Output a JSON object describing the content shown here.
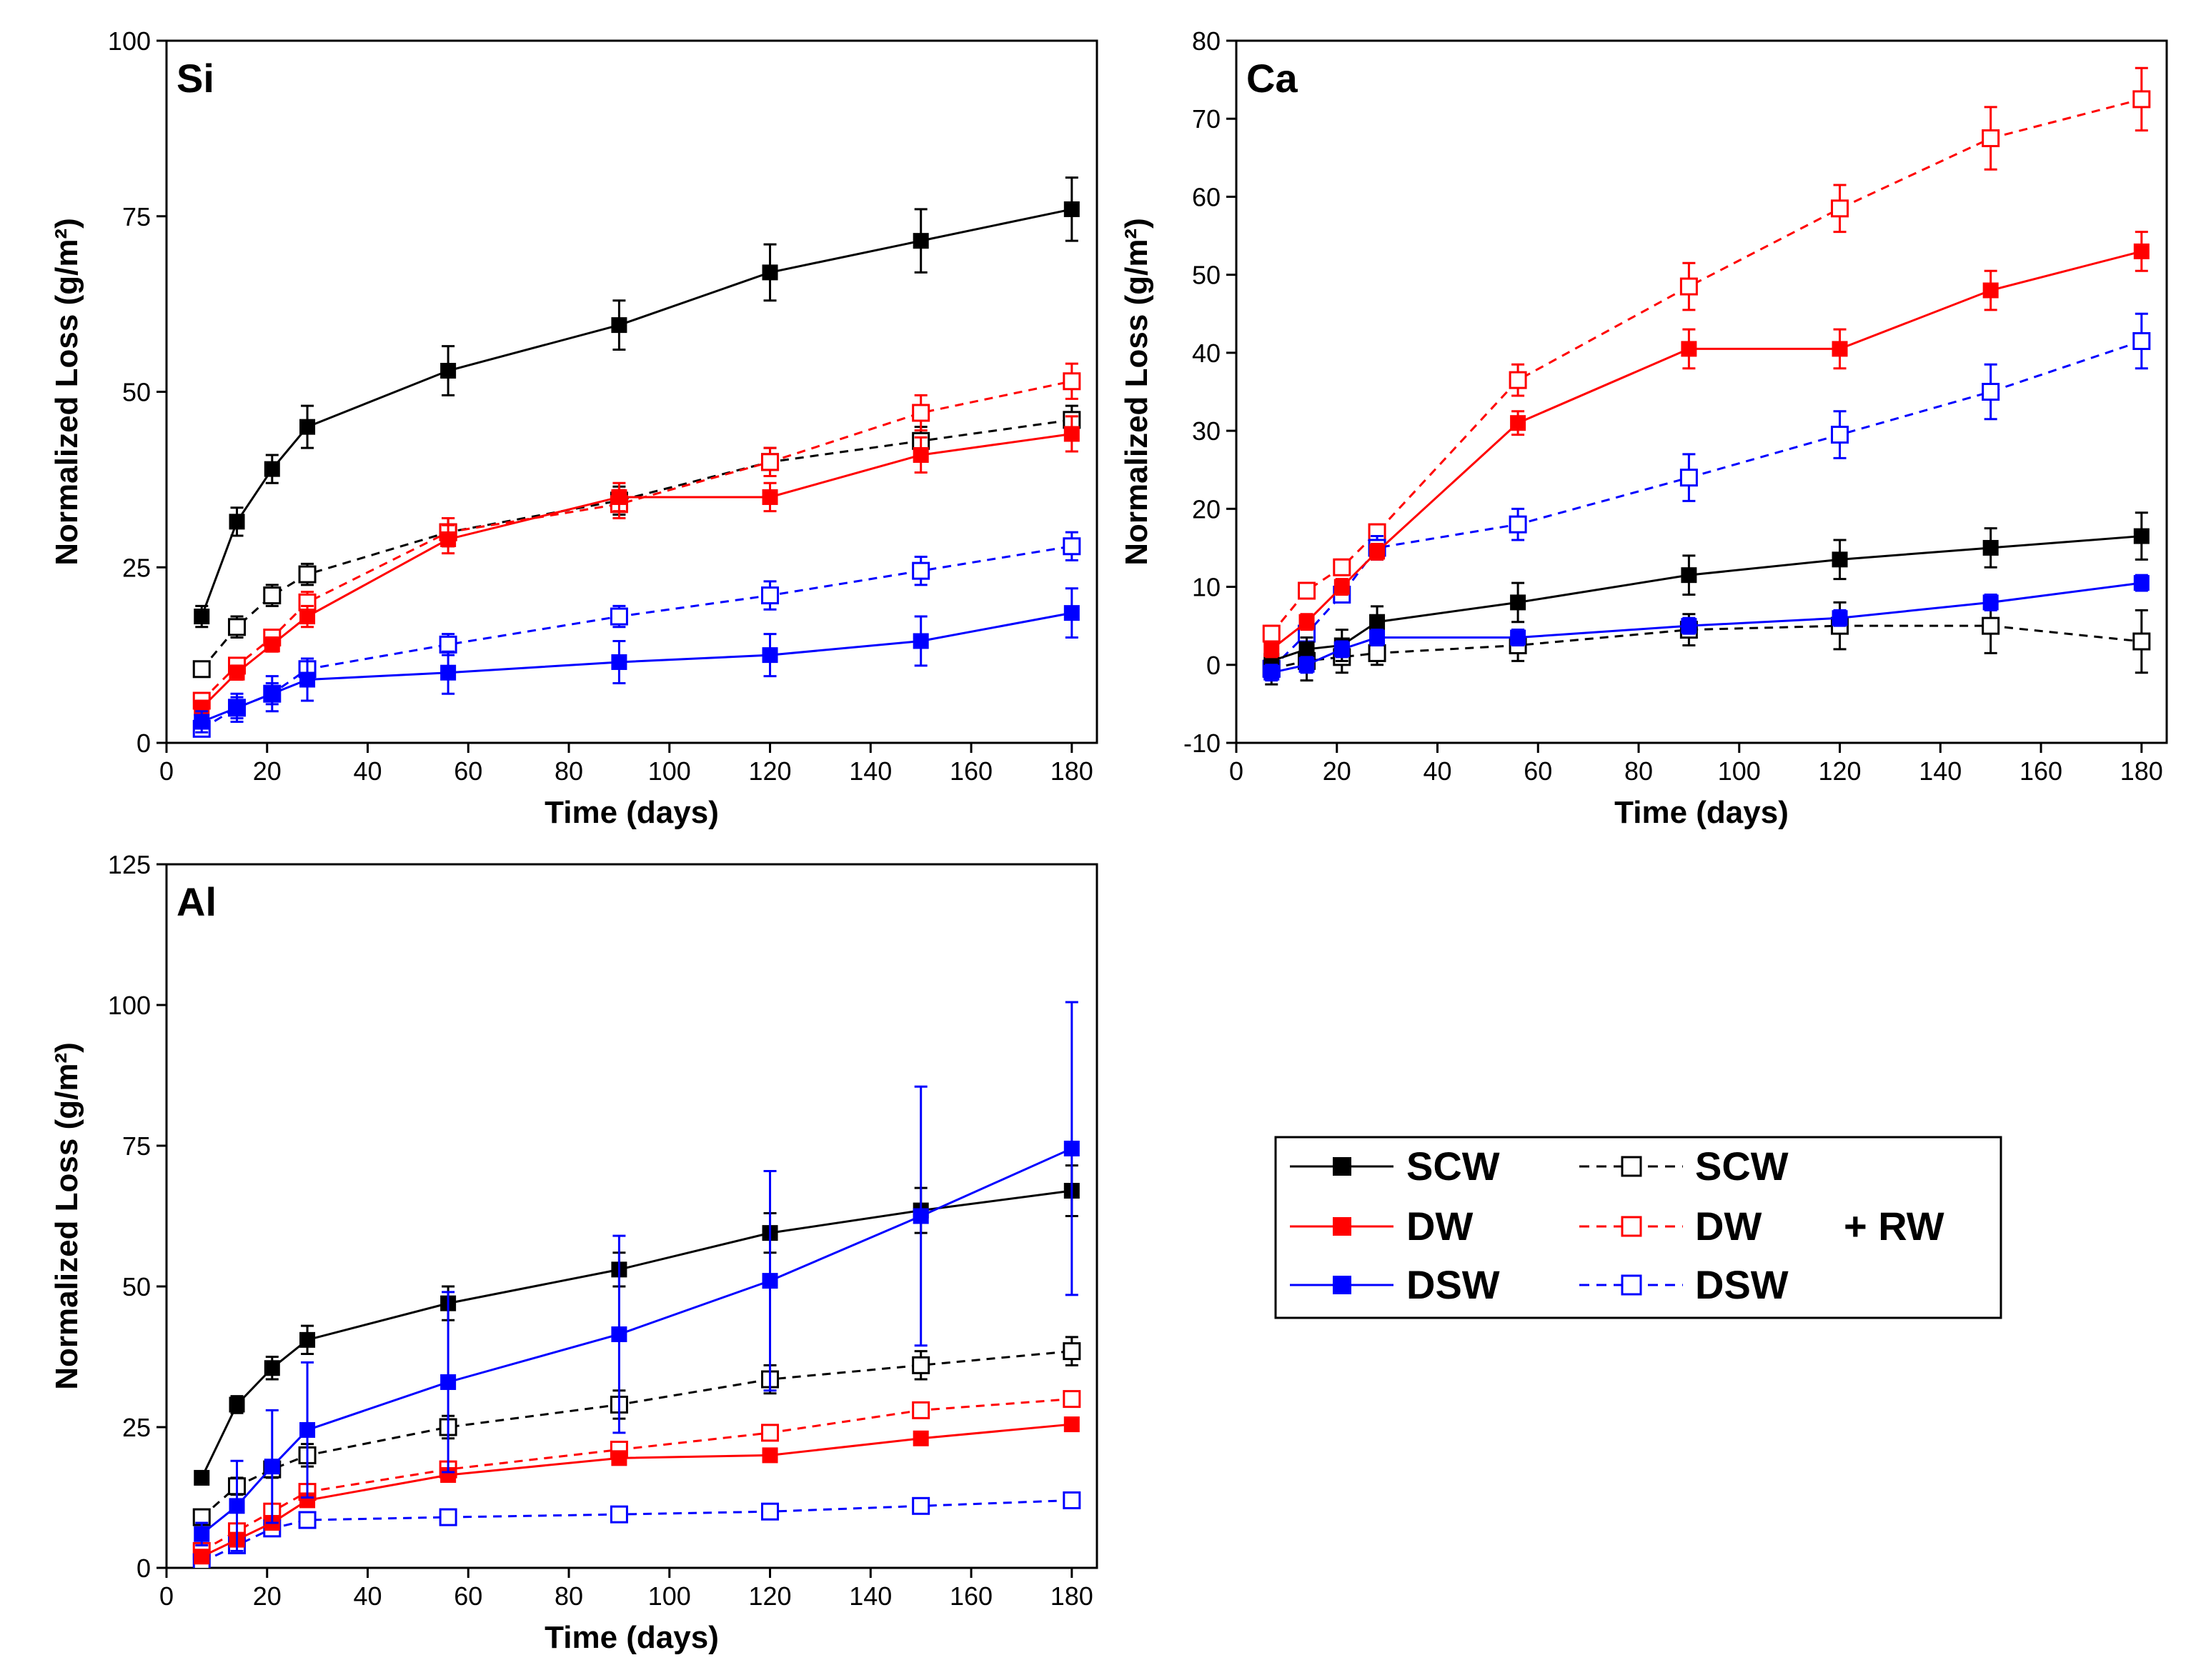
{
  "colors": {
    "SCW": "#000000",
    "DW": "#ff0000",
    "DSW": "#0000ff"
  },
  "legend": {
    "solid": [
      "SCW",
      "DW",
      "DSW"
    ],
    "dashed": [
      "SCW",
      "DW",
      "DSW"
    ],
    "suffix": "+ RW"
  },
  "chart_data": [
    {
      "type": "line",
      "panel": "Si",
      "xlabel": "Time (days)",
      "ylabel": "Normalized Loss (g/m²)",
      "xlim": [
        0,
        185
      ],
      "ylim": [
        0,
        100
      ],
      "xticks": [
        0,
        20,
        40,
        60,
        80,
        100,
        120,
        140,
        160,
        180
      ],
      "yticks": [
        0,
        25,
        50,
        75,
        100
      ],
      "x": [
        7,
        14,
        21,
        28,
        56,
        90,
        120,
        150,
        180
      ],
      "series": [
        {
          "name": "SCW",
          "style": "solid",
          "values": [
            18,
            31.5,
            39,
            45,
            53,
            59.5,
            67,
            71.5,
            76
          ],
          "errors": [
            1.5,
            2,
            2,
            3,
            3.5,
            3.5,
            4,
            4.5,
            4.5
          ]
        },
        {
          "name": "DW",
          "style": "solid",
          "values": [
            5,
            10,
            14,
            18,
            29,
            35,
            35,
            41,
            44
          ],
          "errors": [
            1,
            1,
            1,
            1.5,
            2,
            2,
            2,
            2.5,
            2.5
          ]
        },
        {
          "name": "DSW",
          "style": "solid",
          "values": [
            3,
            5,
            7,
            9,
            10,
            11.5,
            12.5,
            14.5,
            18.5
          ],
          "errors": [
            1.5,
            2,
            2.5,
            3,
            3,
            3,
            3,
            3.5,
            3.5
          ]
        },
        {
          "name": "SCW",
          "style": "dashed",
          "values": [
            10.5,
            16.5,
            21,
            24,
            30,
            34.5,
            40,
            43,
            46
          ],
          "errors": [
            1,
            1.5,
            1.5,
            1.5,
            2,
            2,
            2,
            2,
            2
          ]
        },
        {
          "name": "DW",
          "style": "dashed",
          "values": [
            6,
            11,
            15,
            20,
            30,
            34,
            40,
            47,
            51.5
          ],
          "errors": [
            1,
            1,
            1,
            1.5,
            2,
            2,
            2,
            2.5,
            2.5
          ]
        },
        {
          "name": "DSW",
          "style": "dashed",
          "values": [
            2,
            5,
            7,
            10.5,
            14,
            18,
            21,
            24.5,
            28
          ],
          "errors": [
            1,
            1.5,
            1.5,
            1.5,
            1.5,
            1.5,
            2,
            2,
            2
          ]
        }
      ]
    },
    {
      "type": "line",
      "panel": "Ca",
      "xlabel": "Time (days)",
      "ylabel": "Normalized Loss (g/m²)",
      "xlim": [
        0,
        185
      ],
      "ylim": [
        -10,
        80
      ],
      "xticks": [
        0,
        20,
        40,
        60,
        80,
        100,
        120,
        140,
        160,
        180
      ],
      "yticks": [
        -10,
        0,
        10,
        20,
        30,
        40,
        50,
        60,
        70,
        80
      ],
      "x": [
        7,
        14,
        21,
        28,
        56,
        90,
        120,
        150,
        180
      ],
      "series": [
        {
          "name": "SCW",
          "style": "solid",
          "values": [
            0.5,
            2,
            2.5,
            5.5,
            8,
            11.5,
            13.5,
            15,
            16.5
          ],
          "errors": [
            1.5,
            1.5,
            2,
            2,
            2.5,
            2.5,
            2.5,
            2.5,
            3
          ]
        },
        {
          "name": "DW",
          "style": "solid",
          "values": [
            2,
            5.5,
            10,
            14.5,
            31,
            40.5,
            40.5,
            48,
            53
          ],
          "errors": [
            1,
            1,
            1,
            1,
            1.5,
            2.5,
            2.5,
            2.5,
            2.5
          ]
        },
        {
          "name": "DSW",
          "style": "solid",
          "values": [
            -1,
            0,
            2,
            3.5,
            3.5,
            5,
            6,
            8,
            10.5
          ],
          "errors": [
            1,
            1,
            1,
            1,
            1,
            1,
            1,
            1,
            1
          ]
        },
        {
          "name": "SCW",
          "style": "dashed",
          "values": [
            -0.5,
            0.5,
            1,
            1.5,
            2.5,
            4.5,
            5,
            5,
            3
          ],
          "errors": [
            2,
            2.5,
            2,
            1.5,
            2,
            2,
            3,
            3.5,
            4
          ]
        },
        {
          "name": "DW",
          "style": "dashed",
          "values": [
            4,
            9.5,
            12.5,
            17,
            36.5,
            48.5,
            58.5,
            67.5,
            72.5
          ],
          "errors": [
            1,
            1,
            1,
            1,
            2,
            3,
            3,
            4,
            4
          ]
        },
        {
          "name": "DSW",
          "style": "dashed",
          "values": [
            -0.5,
            4,
            9,
            15,
            18,
            24,
            29.5,
            35,
            41.5
          ],
          "errors": [
            1,
            1,
            1,
            1.5,
            2,
            3,
            3,
            3.5,
            3.5
          ]
        }
      ]
    },
    {
      "type": "line",
      "panel": "Al",
      "xlabel": "Time (days)",
      "ylabel": "Normalized Loss (g/m²)",
      "xlim": [
        0,
        185
      ],
      "ylim": [
        0,
        125
      ],
      "xticks": [
        0,
        20,
        40,
        60,
        80,
        100,
        120,
        140,
        160,
        180
      ],
      "yticks": [
        0,
        25,
        50,
        75,
        100,
        125
      ],
      "x": [
        7,
        14,
        21,
        28,
        56,
        90,
        120,
        150,
        180
      ],
      "series": [
        {
          "name": "SCW",
          "style": "solid",
          "values": [
            16,
            29,
            35.5,
            40.5,
            47,
            53,
            59.5,
            63.5,
            67
          ],
          "errors": [
            1,
            1.5,
            2,
            2.5,
            3,
            3,
            3.5,
            4,
            4.5
          ]
        },
        {
          "name": "DW",
          "style": "solid",
          "values": [
            2,
            5,
            8,
            12,
            16.5,
            19.5,
            20,
            23,
            25.5
          ],
          "errors": [
            0.5,
            1,
            1,
            1,
            1,
            1,
            1,
            1,
            1
          ]
        },
        {
          "name": "DSW",
          "style": "solid",
          "values": [
            6,
            11,
            18,
            24.5,
            33,
            41.5,
            51,
            62.5,
            74.5
          ],
          "errors": [
            2,
            8,
            10,
            12,
            16,
            17.5,
            19.5,
            23,
            26
          ]
        },
        {
          "name": "SCW",
          "style": "dashed",
          "values": [
            9,
            14.5,
            17.5,
            20,
            25,
            29,
            33.5,
            36,
            38.5
          ],
          "errors": [
            1,
            1.5,
            1.5,
            2,
            2,
            2.5,
            2.5,
            2.5,
            2.5
          ]
        },
        {
          "name": "DW",
          "style": "dashed",
          "values": [
            3,
            6.5,
            10,
            13.5,
            17.5,
            21,
            24,
            28,
            30
          ],
          "errors": [
            1,
            1,
            1,
            1,
            1,
            1,
            1,
            1,
            1
          ]
        },
        {
          "name": "DSW",
          "style": "dashed",
          "values": [
            1,
            4,
            7,
            8.5,
            9,
            9.5,
            10,
            11,
            12
          ],
          "errors": [
            0.5,
            0.5,
            0.5,
            0.5,
            0.5,
            0.5,
            0.5,
            0.5,
            0.5
          ]
        }
      ]
    }
  ]
}
